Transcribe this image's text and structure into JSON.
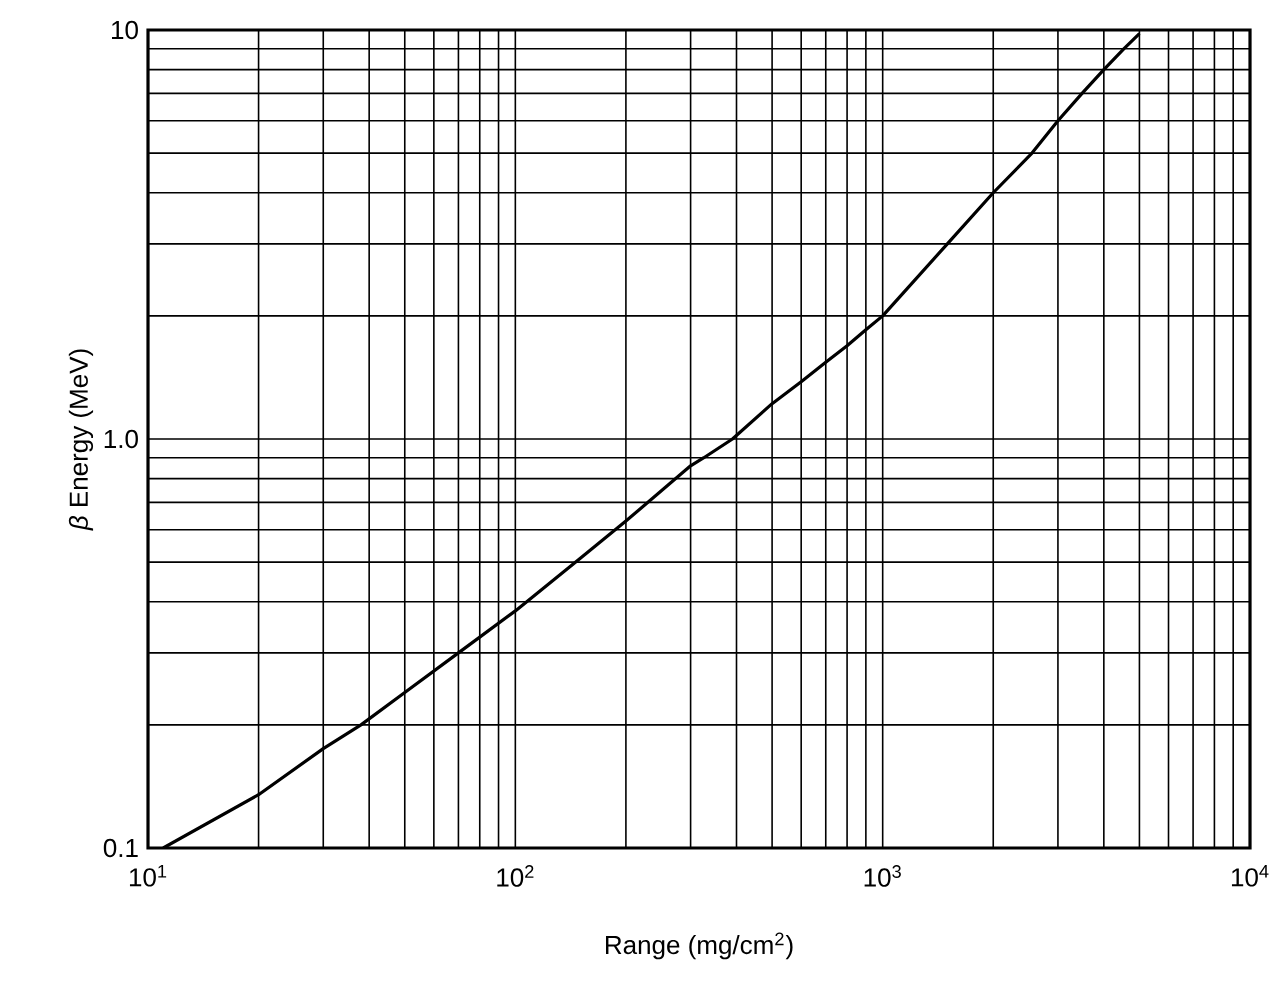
{
  "chart_data": {
    "type": "line",
    "xlabel": "Range (mg/cm$^{2}$)",
    "ylabel": "*β* Energy (MeV)",
    "log": "xy",
    "grid": true,
    "marker": "none",
    "line_style": "solid",
    "xlim": [
      10,
      10000
    ],
    "ylim": [
      0.1,
      10
    ],
    "xticks": [
      {
        "value": 10,
        "label": "10$^{1}$"
      },
      {
        "value": 100,
        "label": "10$^{2}$"
      },
      {
        "value": 1000,
        "label": "10$^{3}$"
      },
      {
        "value": 10000,
        "label": "10$^{4}$"
      }
    ],
    "yticks": [
      0.1,
      {
        "value": 1,
        "label": "1.0"
      },
      10
    ],
    "series": [
      {
        "color": "#000000",
        "x": [
          11,
          20,
          30,
          38,
          50,
          70,
          100,
          150,
          200,
          300,
          326,
          390,
          500,
          600,
          700,
          800,
          900,
          1000,
          1500,
          2000,
          2550,
          3000,
          3490,
          4000,
          4540,
          5000
        ],
        "values": [
          0.1,
          0.135,
          0.175,
          0.2,
          0.24,
          0.3,
          0.38,
          0.51,
          0.63,
          0.86,
          0.9,
          1.0,
          1.22,
          1.38,
          1.54,
          1.69,
          1.85,
          2.0,
          3,
          4,
          5,
          6,
          7,
          8,
          9,
          9.8
        ]
      }
    ]
  }
}
